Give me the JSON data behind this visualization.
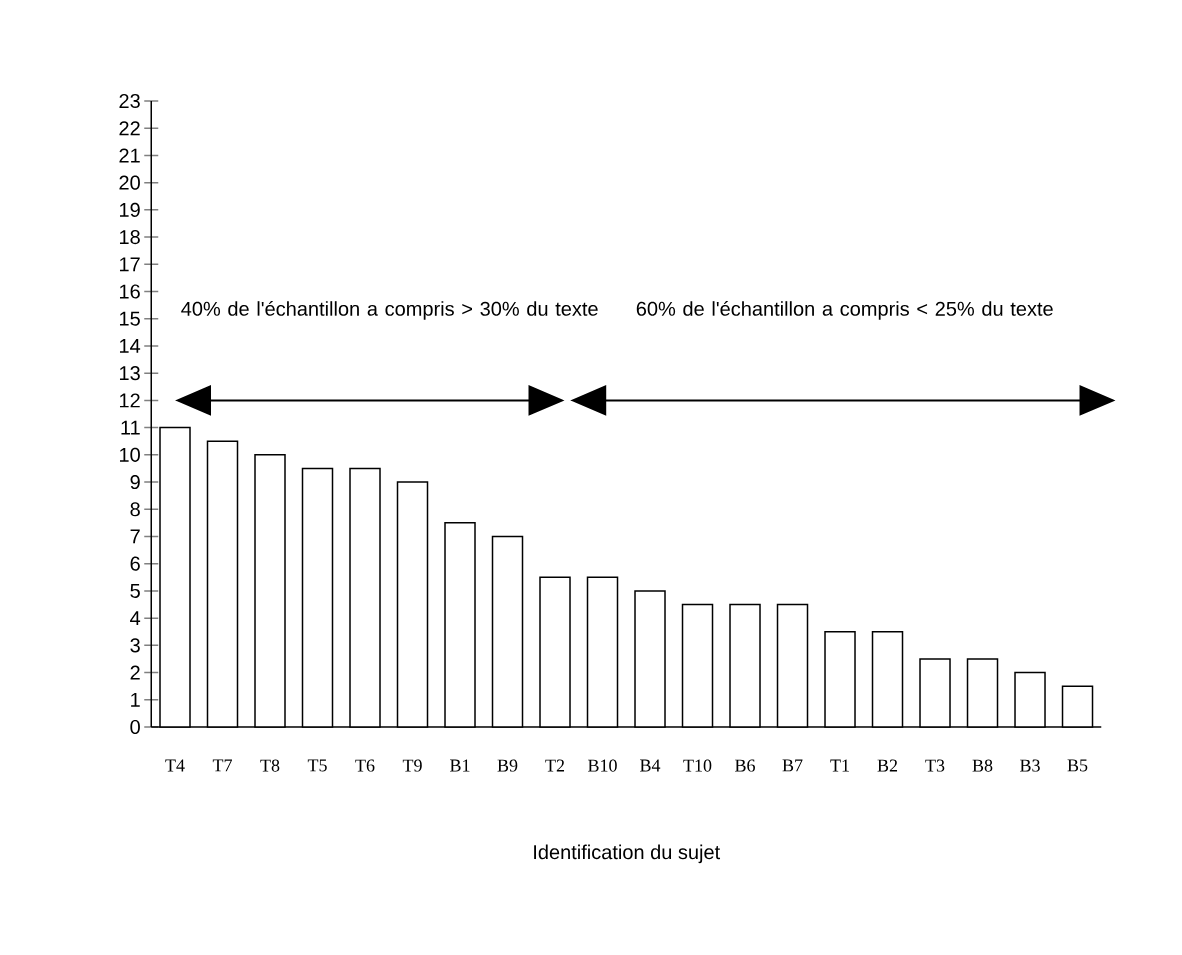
{
  "chart_data": {
    "type": "bar",
    "xlabel": "Identification du sujet",
    "categories": [
      "T4",
      "T7",
      "T8",
      "T5",
      "T6",
      "T9",
      "B1",
      "B9",
      "T2",
      "B10",
      "B4",
      "T10",
      "B6",
      "B7",
      "T1",
      "B2",
      "T3",
      "B8",
      "B3",
      "B5"
    ],
    "values": [
      11,
      10.5,
      10,
      9.5,
      9.5,
      9,
      7.5,
      7,
      5.5,
      5.5,
      5,
      4.5,
      4.5,
      4.5,
      3.5,
      3.5,
      2.5,
      2.5,
      2,
      1.5
    ],
    "color": "#ffffff",
    "ylim": [
      0,
      23
    ],
    "yticks": [
      0,
      1,
      2,
      3,
      4,
      5,
      6,
      7,
      8,
      9,
      10,
      11,
      12,
      13,
      14,
      15,
      16,
      17,
      18,
      19,
      20,
      21,
      22,
      23
    ],
    "annotations": [
      "40% de l'échantillon a compris > 30% du texte",
      "60% de l'échantillon a compris < 25% du texte"
    ]
  }
}
